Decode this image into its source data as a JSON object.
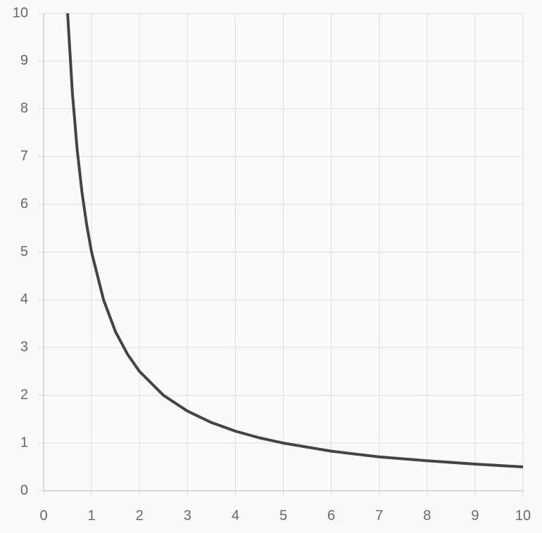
{
  "chart_data": {
    "type": "line",
    "x": [
      0.5,
      0.6,
      0.7,
      0.8,
      0.9,
      1,
      1.25,
      1.5,
      1.75,
      2,
      2.5,
      3,
      3.5,
      4,
      4.5,
      5,
      6,
      7,
      8,
      9,
      10
    ],
    "series": [
      {
        "color": "#444444",
        "values": [
          10,
          8.33,
          7.14,
          6.25,
          5.56,
          5,
          4,
          3.33,
          2.86,
          2.5,
          2,
          1.67,
          1.43,
          1.25,
          1.11,
          1,
          0.83,
          0.71,
          0.63,
          0.56,
          0.5
        ]
      }
    ],
    "xlim": [
      0,
      10
    ],
    "xticks": [
      0,
      1,
      2,
      3,
      4,
      5,
      6,
      7,
      8,
      9,
      10
    ],
    "ylim": [
      0,
      10
    ],
    "yticks": [
      0,
      1,
      2,
      3,
      4,
      5,
      6,
      7,
      8,
      9,
      10
    ],
    "grid": true
  }
}
